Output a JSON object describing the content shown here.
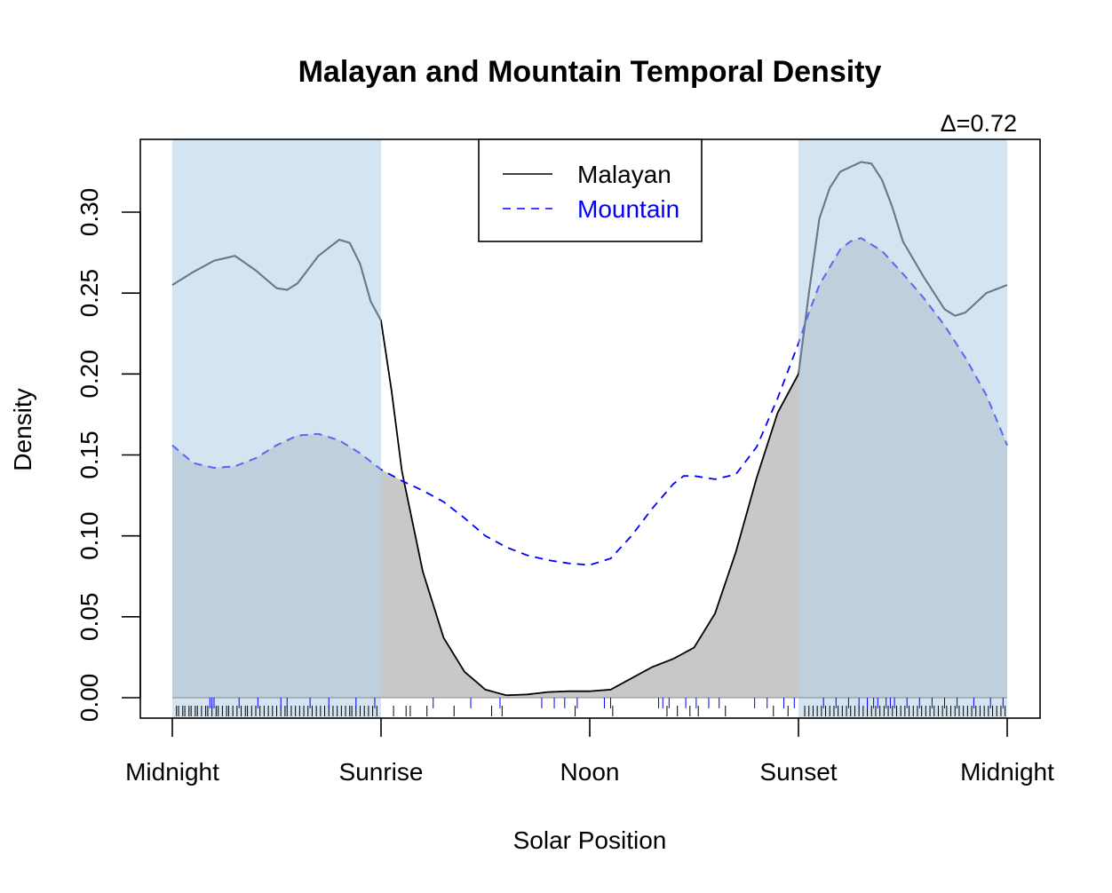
{
  "chart_data": {
    "type": "area",
    "title": "Malayan and Mountain Temporal Density",
    "overlap_annotation": "Δ=0.72",
    "xlabel": "Solar Position",
    "ylabel": "Density",
    "xlim": [
      0,
      4
    ],
    "ylim": [
      0,
      0.33
    ],
    "x_ticks": [
      {
        "value": 0,
        "label": "Midnight"
      },
      {
        "value": 1,
        "label": "Sunrise"
      },
      {
        "value": 2,
        "label": "Noon"
      },
      {
        "value": 3,
        "label": "Sunset"
      },
      {
        "value": 4,
        "label": "Midnight"
      }
    ],
    "y_ticks": [
      {
        "value": 0,
        "label": "0.00"
      },
      {
        "value": 0.05,
        "label": "0.05"
      },
      {
        "value": 0.1,
        "label": "0.10"
      },
      {
        "value": 0.15,
        "label": "0.15"
      },
      {
        "value": 0.2,
        "label": "0.20"
      },
      {
        "value": 0.25,
        "label": "0.25"
      },
      {
        "value": 0.3,
        "label": "0.30"
      }
    ],
    "night_bands": [
      {
        "from": 0,
        "to": 1
      },
      {
        "from": 3,
        "to": 4
      }
    ],
    "legend": {
      "placement": "top-center",
      "entries": [
        {
          "label": "Malayan",
          "color": "#000000",
          "dash": "solid"
        },
        {
          "label": "Mountain",
          "color": "#0000ff",
          "dash": "dashed"
        }
      ]
    },
    "colors": {
      "night_band": "#d4e4f1",
      "overlap_fill": "#c8c8c8",
      "overlap_fill_night": "#bfcfdc",
      "malayan_line": "#000000",
      "malayan_line_night": "#6a7b8b",
      "mountain_line": "#0000ff",
      "mountain_line_night": "#5e6ef0",
      "rug_malayan": "#000000",
      "rug_mountain": "#0000ff"
    },
    "series": [
      {
        "name": "Malayan",
        "x": [
          0,
          0.1,
          0.2,
          0.3,
          0.4,
          0.5,
          0.55,
          0.6,
          0.7,
          0.8,
          0.85,
          0.9,
          0.95,
          1.0,
          1.05,
          1.1,
          1.2,
          1.3,
          1.4,
          1.5,
          1.6,
          1.7,
          1.8,
          1.9,
          2.0,
          2.1,
          2.2,
          2.3,
          2.4,
          2.5,
          2.6,
          2.7,
          2.8,
          2.9,
          3.0,
          3.05,
          3.1,
          3.15,
          3.2,
          3.3,
          3.35,
          3.4,
          3.45,
          3.5,
          3.6,
          3.7,
          3.75,
          3.8,
          3.85,
          3.9,
          4.0
        ],
        "values": [
          0.255,
          0.263,
          0.27,
          0.273,
          0.264,
          0.253,
          0.252,
          0.256,
          0.273,
          0.283,
          0.281,
          0.268,
          0.245,
          0.233,
          0.19,
          0.14,
          0.078,
          0.037,
          0.016,
          0.005,
          0.0015,
          0.002,
          0.0035,
          0.004,
          0.004,
          0.005,
          0.012,
          0.019,
          0.024,
          0.031,
          0.052,
          0.09,
          0.136,
          0.176,
          0.2,
          0.25,
          0.296,
          0.315,
          0.325,
          0.331,
          0.33,
          0.32,
          0.303,
          0.282,
          0.26,
          0.24,
          0.236,
          0.238,
          0.244,
          0.25,
          0.255
        ]
      },
      {
        "name": "Mountain",
        "x": [
          0,
          0.1,
          0.2,
          0.3,
          0.4,
          0.5,
          0.6,
          0.7,
          0.8,
          0.9,
          1.0,
          1.1,
          1.2,
          1.3,
          1.4,
          1.5,
          1.6,
          1.7,
          1.8,
          1.9,
          2.0,
          2.1,
          2.2,
          2.3,
          2.4,
          2.45,
          2.5,
          2.6,
          2.7,
          2.8,
          2.9,
          3.0,
          3.05,
          3.1,
          3.2,
          3.25,
          3.3,
          3.4,
          3.5,
          3.6,
          3.7,
          3.8,
          3.9,
          4.0
        ],
        "values": [
          0.156,
          0.145,
          0.142,
          0.143,
          0.148,
          0.156,
          0.162,
          0.163,
          0.159,
          0.151,
          0.141,
          0.134,
          0.128,
          0.121,
          0.111,
          0.1,
          0.093,
          0.088,
          0.085,
          0.083,
          0.082,
          0.086,
          0.1,
          0.117,
          0.132,
          0.137,
          0.137,
          0.135,
          0.138,
          0.155,
          0.185,
          0.219,
          0.238,
          0.255,
          0.277,
          0.282,
          0.284,
          0.276,
          0.262,
          0.247,
          0.23,
          0.21,
          0.187,
          0.156
        ]
      }
    ],
    "rug": {
      "Malayan": [
        0.02,
        0.03,
        0.05,
        0.06,
        0.08,
        0.09,
        0.11,
        0.12,
        0.14,
        0.16,
        0.17,
        0.19,
        0.21,
        0.22,
        0.24,
        0.26,
        0.27,
        0.29,
        0.31,
        0.33,
        0.35,
        0.36,
        0.38,
        0.4,
        0.42,
        0.44,
        0.46,
        0.48,
        0.5,
        0.52,
        0.54,
        0.55,
        0.57,
        0.59,
        0.61,
        0.63,
        0.65,
        0.67,
        0.69,
        0.71,
        0.73,
        0.75,
        0.77,
        0.79,
        0.81,
        0.83,
        0.85,
        0.86,
        0.88,
        0.9,
        0.92,
        0.94,
        0.96,
        0.98,
        1.06,
        1.12,
        1.14,
        1.22,
        1.35,
        1.53,
        1.58,
        1.93,
        2.11,
        2.37,
        2.42,
        2.48,
        2.52,
        2.65,
        2.88,
        2.95,
        3.03,
        3.05,
        3.07,
        3.09,
        3.11,
        3.13,
        3.15,
        3.17,
        3.19,
        3.21,
        3.23,
        3.25,
        3.27,
        3.29,
        3.31,
        3.33,
        3.35,
        3.37,
        3.39,
        3.41,
        3.43,
        3.45,
        3.47,
        3.49,
        3.51,
        3.53,
        3.55,
        3.57,
        3.59,
        3.61,
        3.63,
        3.65,
        3.67,
        3.69,
        3.71,
        3.73,
        3.75,
        3.77,
        3.79,
        3.81,
        3.83,
        3.85,
        3.87,
        3.89,
        3.91,
        3.93,
        3.95,
        3.97,
        3.99
      ],
      "Mountain": [
        0.18,
        0.19,
        0.2,
        0.32,
        0.41,
        0.52,
        0.55,
        0.66,
        0.75,
        0.88,
        0.97,
        1.25,
        1.43,
        1.57,
        1.77,
        1.83,
        1.88,
        1.94,
        2.07,
        2.1,
        2.33,
        2.35,
        2.38,
        2.46,
        2.51,
        2.57,
        2.62,
        2.79,
        2.85,
        2.93,
        2.98,
        3.12,
        3.18,
        3.24,
        3.29,
        3.33,
        3.36,
        3.38,
        3.42,
        3.44,
        3.46,
        3.52,
        3.58,
        3.64,
        3.7,
        3.76,
        3.84,
        3.92,
        3.98
      ]
    }
  }
}
